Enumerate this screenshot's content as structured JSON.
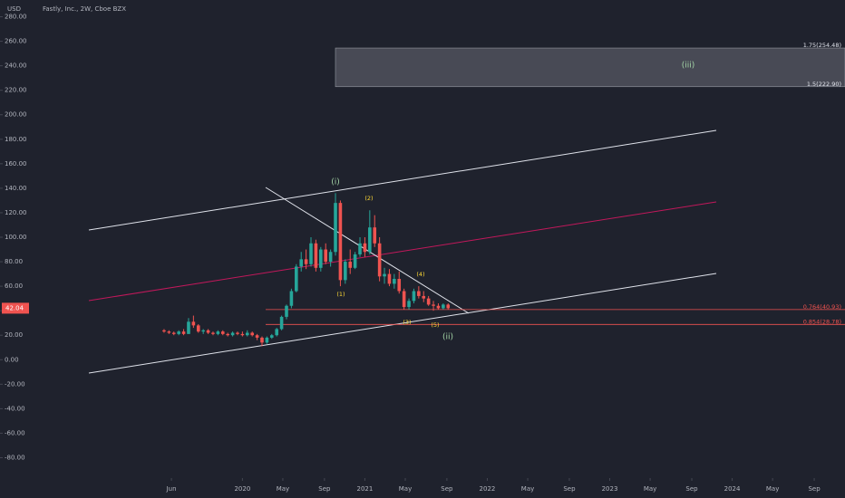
{
  "chart_data": {
    "type": "candlestick",
    "title": "Fastly, Inc., 2W, Cboe BZX",
    "ylabel": "USD",
    "up_color": "#26a69a",
    "down_color": "#ef5350",
    "x": [
      2019.36,
      2019.4,
      2019.44,
      2019.48,
      2019.52,
      2019.56,
      2019.6,
      2019.64,
      2019.68,
      2019.72,
      2019.76,
      2019.8,
      2019.84,
      2019.88,
      2019.92,
      2019.96,
      2020.0,
      2020.04,
      2020.08,
      2020.12,
      2020.16,
      2020.2,
      2020.24,
      2020.28,
      2020.32,
      2020.36,
      2020.4,
      2020.44,
      2020.48,
      2020.52,
      2020.56,
      2020.6,
      2020.64,
      2020.68,
      2020.72,
      2020.76,
      2020.8,
      2020.84,
      2020.88,
      2020.92,
      2020.96,
      2021.0,
      2021.04,
      2021.08,
      2021.12,
      2021.16,
      2021.2,
      2021.24,
      2021.28,
      2021.32,
      2021.36,
      2021.4,
      2021.44,
      2021.48,
      2021.52,
      2021.56,
      2021.6,
      2021.64,
      2021.68
    ],
    "open": [
      24,
      23,
      22,
      21,
      23,
      21,
      31,
      28,
      23,
      24,
      22,
      21,
      23,
      21,
      20,
      22,
      21,
      20,
      22,
      20,
      18,
      14,
      18,
      20,
      25,
      35,
      44,
      56,
      76,
      82,
      78,
      95,
      75,
      90,
      80,
      88,
      128,
      65,
      80,
      75,
      86,
      95,
      88,
      108,
      95,
      68,
      70,
      62,
      66,
      56,
      43,
      48,
      56,
      52,
      50,
      45,
      44,
      42,
      45
    ],
    "high": [
      25,
      24,
      23,
      24,
      25,
      34,
      36,
      29,
      25,
      25,
      23,
      24,
      24,
      22,
      23,
      23,
      23,
      24,
      23,
      21,
      19,
      19,
      21,
      26,
      36,
      45,
      58,
      78,
      88,
      90,
      100,
      98,
      92,
      95,
      90,
      136,
      130,
      82,
      90,
      88,
      100,
      100,
      122,
      118,
      100,
      75,
      74,
      70,
      72,
      58,
      50,
      58,
      60,
      56,
      52,
      48,
      46,
      46,
      46
    ],
    "low": [
      22,
      21,
      20,
      20,
      20,
      21,
      26,
      22,
      21,
      21,
      20,
      20,
      20,
      19,
      19,
      20,
      19,
      19,
      19,
      16,
      11,
      13,
      17,
      19,
      24,
      33,
      42,
      55,
      72,
      74,
      76,
      72,
      72,
      78,
      76,
      85,
      60,
      62,
      70,
      74,
      84,
      84,
      86,
      92,
      64,
      62,
      60,
      58,
      54,
      41,
      41,
      46,
      50,
      47,
      44,
      40,
      41,
      41,
      41
    ],
    "close": [
      23,
      22,
      21,
      23,
      21,
      31,
      28,
      23,
      24,
      22,
      21,
      23,
      21,
      20,
      22,
      21,
      20,
      22,
      20,
      18,
      14,
      18,
      20,
      25,
      35,
      44,
      56,
      76,
      82,
      78,
      95,
      75,
      90,
      80,
      88,
      128,
      65,
      80,
      75,
      86,
      95,
      88,
      108,
      95,
      68,
      70,
      62,
      66,
      56,
      43,
      48,
      56,
      52,
      50,
      45,
      44,
      42,
      45,
      42.04
    ],
    "xlim": [
      2018.02,
      2024.84
    ],
    "xticks": [
      {
        "value": 2019.42,
        "label": "Jun"
      },
      {
        "value": 2020,
        "label": "2020"
      },
      {
        "value": 2020.33,
        "label": "May"
      },
      {
        "value": 2020.67,
        "label": "Sep"
      },
      {
        "value": 2021,
        "label": "2021"
      },
      {
        "value": 2021.33,
        "label": "May"
      },
      {
        "value": 2021.67,
        "label": "Sep"
      },
      {
        "value": 2022,
        "label": "2022"
      },
      {
        "value": 2022.33,
        "label": "May"
      },
      {
        "value": 2022.67,
        "label": "Sep"
      },
      {
        "value": 2023,
        "label": "2023"
      },
      {
        "value": 2023.33,
        "label": "May"
      },
      {
        "value": 2023.67,
        "label": "Sep"
      },
      {
        "value": 2024,
        "label": "2024"
      },
      {
        "value": 2024.33,
        "label": "May"
      },
      {
        "value": 2024.67,
        "label": "Sep"
      }
    ],
    "ylim": [
      -90,
      290
    ],
    "yticks": [
      {
        "value": 280,
        "label": "280.00"
      },
      {
        "value": 260,
        "label": "260.00"
      },
      {
        "value": 240,
        "label": "240.00"
      },
      {
        "value": 220,
        "label": "220.00"
      },
      {
        "value": 200,
        "label": "200.00"
      },
      {
        "value": 180,
        "label": "180.00"
      },
      {
        "value": 160,
        "label": "160.00"
      },
      {
        "value": 140,
        "label": "140.00"
      },
      {
        "value": 120,
        "label": "120.00"
      },
      {
        "value": 100,
        "label": "100.00"
      },
      {
        "value": 80,
        "label": "80.00"
      },
      {
        "value": 60,
        "label": "60.00"
      },
      {
        "value": 40,
        "label": "40.00"
      },
      {
        "value": 20,
        "label": "20.00"
      },
      {
        "value": 0,
        "label": "0.00"
      },
      {
        "value": -20,
        "label": "-20.00"
      },
      {
        "value": -40,
        "label": "-40.00"
      },
      {
        "value": -60,
        "label": "-60.00"
      },
      {
        "value": -80,
        "label": "-80.00"
      }
    ],
    "grid": false,
    "fib_levels": [
      {
        "value": 254.48,
        "label": "1.75(254.48)"
      },
      {
        "value": 222.9,
        "label": "1.5(222.90)"
      },
      {
        "value": 40.93,
        "label": "0.764(40.93)"
      },
      {
        "value": 28.78,
        "label": "0.854(28.78)"
      }
    ],
    "wave_labels": [
      "(i)",
      "(1)",
      "(2)",
      "(3)",
      "(4)",
      "(5)",
      "(ii)",
      "(iii)"
    ]
  }
}
